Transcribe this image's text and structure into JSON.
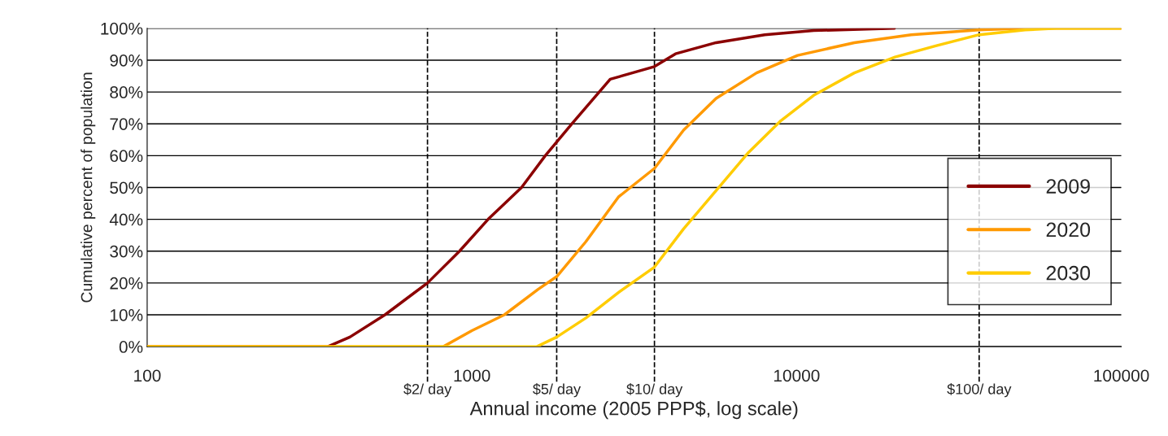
{
  "chart_data": {
    "type": "line",
    "xlabel": "Annual income (2005 PPP$, log scale)",
    "ylabel": "Cumulative percent of population",
    "log": "x",
    "xlim": [
      100,
      100000
    ],
    "xticks": [
      100,
      1000,
      10000,
      100000
    ],
    "ylim": [
      0,
      100
    ],
    "yticks": [
      {
        "value": 0,
        "label": "0%"
      },
      {
        "value": 10,
        "label": "10%"
      },
      {
        "value": 20,
        "label": "20%"
      },
      {
        "value": 30,
        "label": "30%"
      },
      {
        "value": 40,
        "label": "40%"
      },
      {
        "value": 50,
        "label": "50%"
      },
      {
        "value": 60,
        "label": "60%"
      },
      {
        "value": 70,
        "label": "70%"
      },
      {
        "value": 80,
        "label": "80%"
      },
      {
        "value": 90,
        "label": "90%"
      },
      {
        "value": 100,
        "label": "100%"
      }
    ],
    "grid": "y",
    "legend": "right",
    "marker": "none",
    "line_style": "solid",
    "ref_lines": [
      {
        "axis": "x",
        "value": 730,
        "label": "$2/ day",
        "line_style": "dashed",
        "color": "#000000"
      },
      {
        "axis": "x",
        "value": 1825,
        "label": "$5/ day",
        "line_style": "dashed",
        "color": "#000000"
      },
      {
        "axis": "x",
        "value": 3650,
        "label": "$10/ day",
        "line_style": "dashed",
        "color": "#000000"
      },
      {
        "axis": "x",
        "value": 36500,
        "label": "$100/ day",
        "line_style": "dashed",
        "color": "#000000"
      }
    ],
    "series": [
      {
        "name": "2009",
        "color": "#8b0000",
        "x": [
          100,
          360,
          421,
          540,
          730,
          916,
          1122,
          1422,
          1683,
          2033,
          2667,
          3650,
          4237,
          5650,
          7980,
          11300,
          20000
        ],
        "values": [
          0,
          0,
          3,
          10,
          20,
          30,
          40,
          50,
          60,
          70,
          84,
          88,
          92,
          95.5,
          98,
          99.3,
          100
        ]
      },
      {
        "name": "2020",
        "color": "#ff9900",
        "x": [
          100,
          817,
          1000,
          1259,
          1600,
          1825,
          2245,
          2827,
          3650,
          4487,
          5650,
          7530,
          10070,
          15060,
          22540,
          36500,
          50600,
          100000
        ],
        "values": [
          0,
          0,
          5,
          10,
          18,
          22,
          33,
          47,
          56,
          68,
          78,
          86,
          91.5,
          95.5,
          98,
          99.5,
          100,
          100
        ]
      },
      {
        "name": "2030",
        "color": "#ffcc00",
        "x": [
          100,
          1585,
          1825,
          2245,
          2827,
          3650,
          4487,
          5650,
          7110,
          8950,
          11300,
          15060,
          20100,
          26830,
          36500,
          50600,
          63100,
          100000
        ],
        "values": [
          0,
          0,
          3,
          9,
          17,
          25,
          37,
          49,
          61,
          71,
          79,
          86,
          91,
          94.5,
          98,
          99.5,
          100,
          100
        ]
      }
    ]
  }
}
